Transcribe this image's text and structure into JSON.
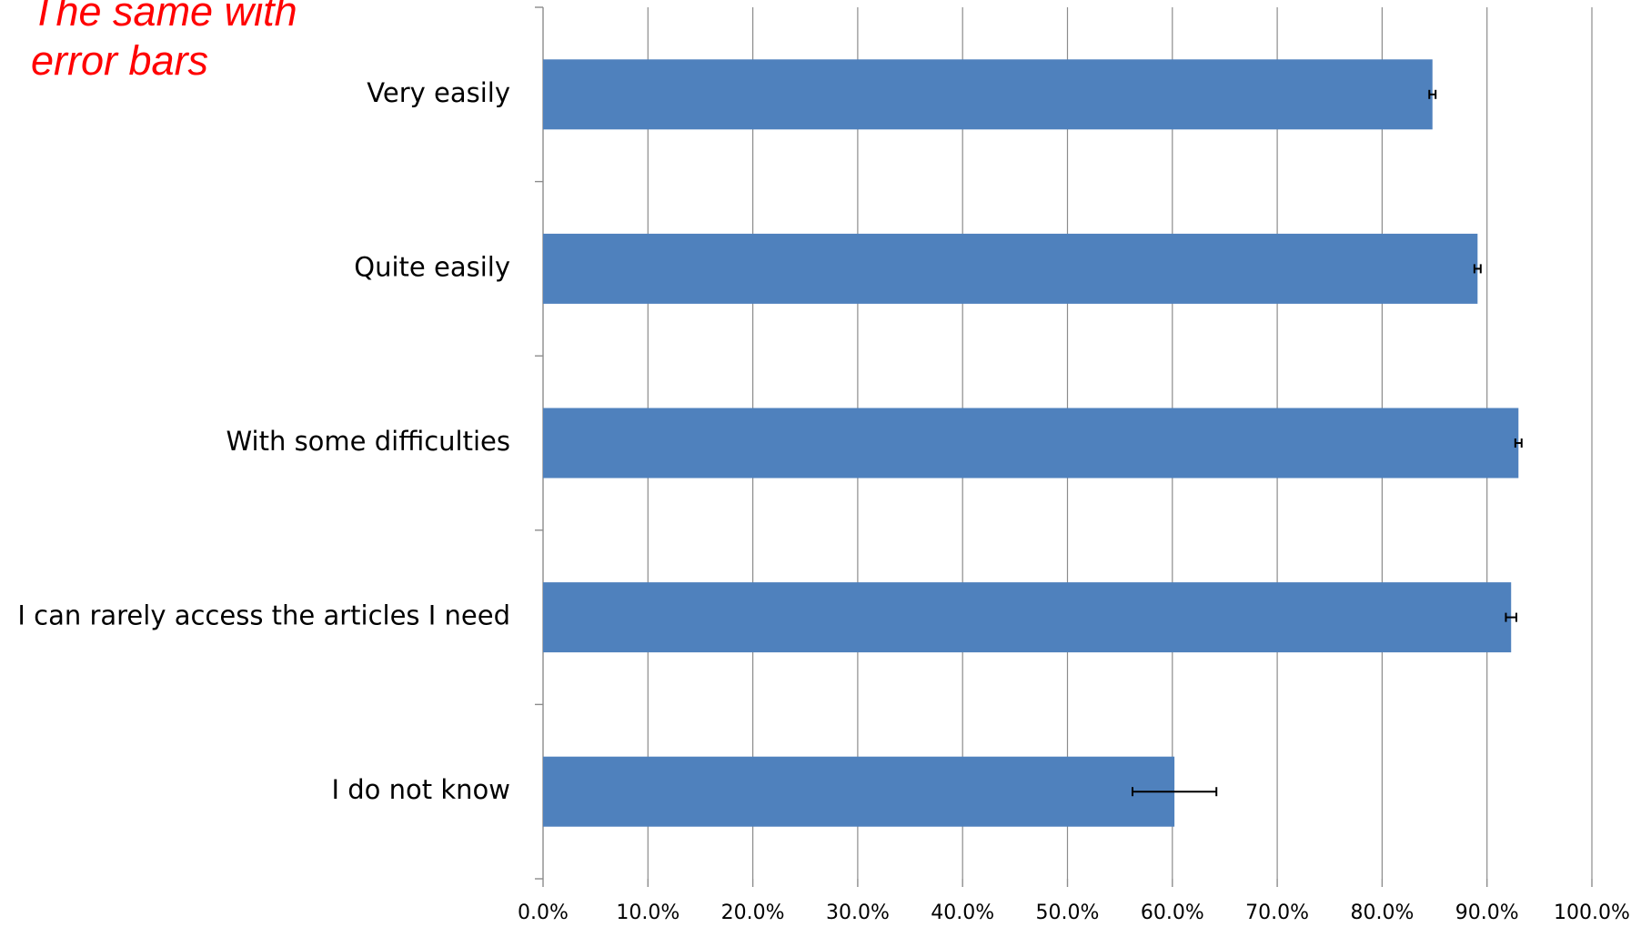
{
  "annotation": "The same with\nerror bars",
  "colors": {
    "bar": "#4f81bd",
    "grid": "#8c8c8c",
    "axis": "#8c8c8c",
    "error_bar": "#000000",
    "annotation": "#ff0000"
  },
  "chart_data": {
    "type": "bar",
    "orientation": "horizontal",
    "categories": [
      "Very easily",
      "Quite easily",
      "With some difficulties",
      "I can rarely access the articles I need",
      "I do not know"
    ],
    "values": [
      0.848,
      0.891,
      0.93,
      0.923,
      0.602
    ],
    "error": [
      0.003,
      0.003,
      0.003,
      0.005,
      0.04
    ],
    "xlim": [
      0,
      1.0
    ],
    "x_ticks": [
      "0.0%",
      "10.0%",
      "20.0%",
      "30.0%",
      "40.0%",
      "50.0%",
      "60.0%",
      "70.0%",
      "80.0%",
      "90.0%",
      "100.0%"
    ],
    "grid": true,
    "legend": "none"
  }
}
